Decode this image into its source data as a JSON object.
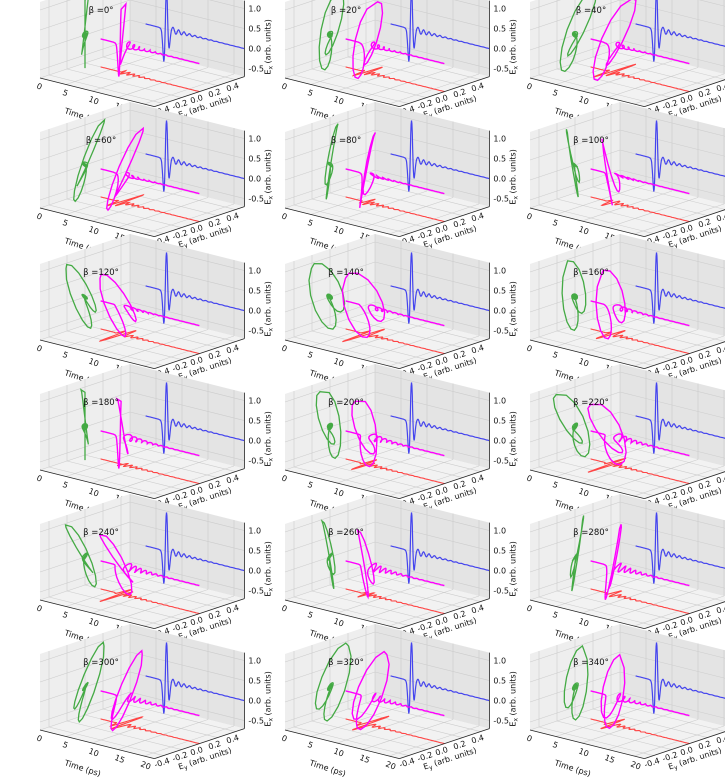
{
  "chart_data": {
    "type": "line",
    "description_axes": {
      "x": "Time (ps)",
      "y": "E_y (arb. units)",
      "z": "E_x (arb. units)"
    },
    "panels_title_prefix": "β =",
    "angles_deg": [
      0,
      20,
      40,
      60,
      80,
      100,
      120,
      140,
      160,
      180,
      200,
      220,
      240,
      260,
      280,
      300,
      320,
      340
    ],
    "x_ticks": [
      "0",
      "5",
      "10",
      "15",
      "20"
    ],
    "y_ticks": [
      "-0.4",
      "-0.2",
      "0.0",
      "0.2",
      "0.4"
    ],
    "z_ticks": [
      "-0.5",
      "0.0",
      "0.5",
      "1.0"
    ],
    "xlabel": "Time (ps)",
    "ylabel_main": "E",
    "ylabel_sub": "y",
    "ylabel_unit": " (arb. units)",
    "zlabel_main": "E",
    "zlabel_sub": "x",
    "zlabel_unit": " (arb. units)",
    "series": [
      {
        "role": "3d-trajectory",
        "color": "#ff00ff"
      },
      {
        "role": "projection-Ex-vs-time",
        "color": "#4444ee"
      },
      {
        "role": "projection-Ex-vs-Ey",
        "color": "#44aa44"
      },
      {
        "role": "projection-Ey-vs-time",
        "color": "#ff4444"
      }
    ],
    "xlim": [
      0,
      22
    ],
    "ylim": [
      -0.5,
      0.5
    ],
    "zlim": [
      -0.7,
      1.2
    ],
    "grid": true
  }
}
